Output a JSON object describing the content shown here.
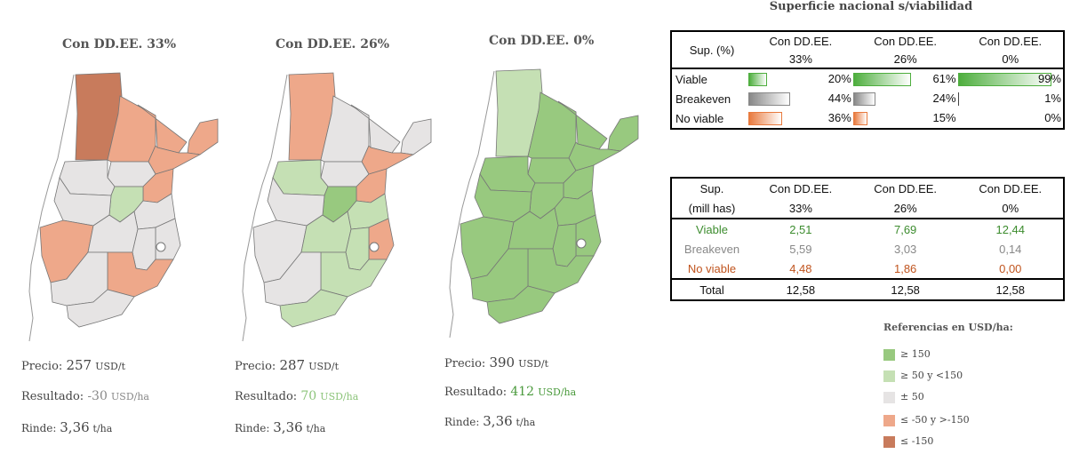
{
  "maps": [
    {
      "title": "Con DD.EE. 33%",
      "precio_label": "Precio:",
      "precio": "257",
      "precio_unit": "USD/t",
      "resultado_label": "Resultado:",
      "resultado": "-30",
      "resultado_unit": "USD/ha",
      "rinde_label": "Rinde:",
      "rinde": "3,36",
      "rinde_unit": "t/ha"
    },
    {
      "title": "Con DD.EE. 26%",
      "precio_label": "Precio:",
      "precio": "287",
      "precio_unit": "USD/t",
      "resultado_label": "Resultado:",
      "resultado": "70",
      "resultado_unit": "USD/ha",
      "rinde_label": "Rinde:",
      "rinde": "3,36",
      "rinde_unit": "t/ha"
    },
    {
      "title": "Con DD.EE. 0%",
      "precio_label": "Precio:",
      "precio": "390",
      "precio_unit": "USD/t",
      "resultado_label": "Resultado:",
      "resultado": "412",
      "resultado_unit": "USD/ha",
      "rinde_label": "Rinde:",
      "rinde": "3,36",
      "rinde_unit": "t/ha"
    }
  ],
  "colors": {
    "very_positive": "#98c97f",
    "positive": "#c5e0b4",
    "neutral": "#e6e4e4",
    "negative": "#eea88a",
    "very_negative": "#c87b5c",
    "border": "#777777"
  },
  "chart_data": [
    {
      "type": "table",
      "title": "Superficie nacional s/viabilidad",
      "header_label": "Sup. (%)",
      "columns": [
        {
          "line1": "Con DD.EE.",
          "line2": "33%"
        },
        {
          "line1": "Con DD.EE.",
          "line2": "26%"
        },
        {
          "line1": "Con DD.EE.",
          "line2": "0%"
        }
      ],
      "rows": [
        {
          "label": "Viable",
          "kind": "v",
          "values": [
            20,
            61,
            99
          ],
          "display": [
            "20%",
            "61%",
            "99%"
          ]
        },
        {
          "label": "Breakeven",
          "kind": "b",
          "values": [
            44,
            24,
            1
          ],
          "display": [
            "44%",
            "24%",
            "1%"
          ]
        },
        {
          "label": "No viable",
          "kind": "n",
          "values": [
            36,
            15,
            0
          ],
          "display": [
            "36%",
            "15%",
            "0%"
          ]
        }
      ]
    },
    {
      "type": "table",
      "header_line1": "Sup.",
      "header_line2": "(mill has)",
      "columns": [
        {
          "line1": "Con DD.EE.",
          "line2": "33%"
        },
        {
          "line1": "Con DD.EE.",
          "line2": "26%"
        },
        {
          "line1": "Con DD.EE.",
          "line2": "0%"
        }
      ],
      "rows": [
        {
          "label": "Viable",
          "values": [
            "2,51",
            "7,69",
            "12,44"
          ]
        },
        {
          "label": "Breakeven",
          "values": [
            "5,59",
            "3,03",
            "0,14"
          ]
        },
        {
          "label": "No viable",
          "values": [
            "4,48",
            "1,86",
            "0,00"
          ]
        },
        {
          "label": "Total",
          "values": [
            "12,58",
            "12,58",
            "12,58"
          ]
        }
      ]
    }
  ],
  "legend": {
    "title": "Referencias en USD/ha:",
    "items": [
      {
        "label": "≥ 150",
        "color": "#98c97f"
      },
      {
        "label": "≥ 50 y <150",
        "color": "#c5e0b4"
      },
      {
        "label": "± 50",
        "color": "#e6e4e4"
      },
      {
        "label": "≤ -50 y >-150",
        "color": "#eea88a"
      },
      {
        "label": "≤ -150",
        "color": "#c87b5c"
      }
    ]
  }
}
